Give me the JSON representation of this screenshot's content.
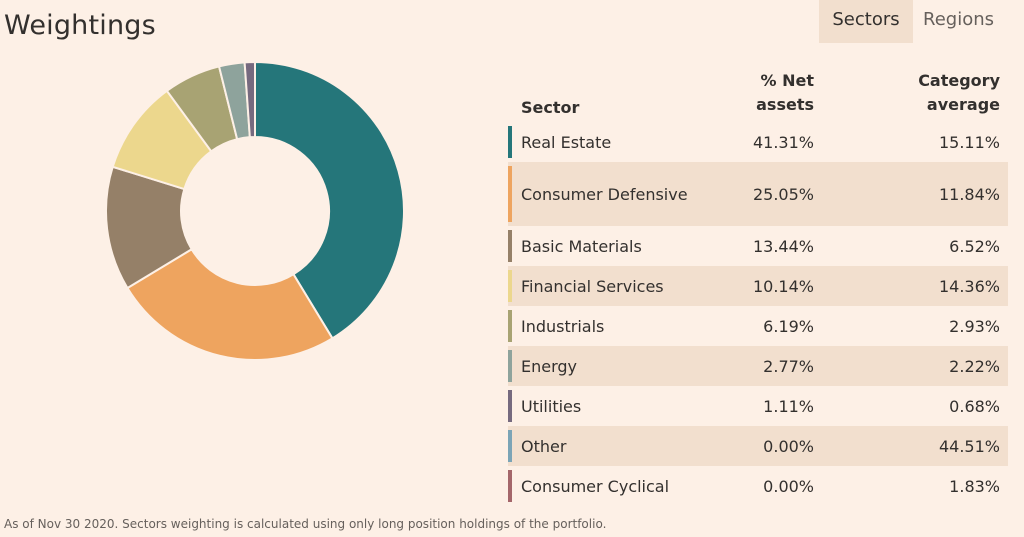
{
  "title": "Weightings",
  "tabs": {
    "sectors": "Sectors",
    "regions": "Regions"
  },
  "table_headers": {
    "sector": "Sector",
    "net_assets_line1": "% Net",
    "net_assets_line2": "assets",
    "category_line1": "Category",
    "category_line2": "average"
  },
  "footnote": "As of Nov 30 2020. Sectors weighting is calculated using only long position holdings of the portfolio.",
  "chart_data": {
    "type": "pie",
    "variant": "donut",
    "categories": [
      "Real Estate",
      "Consumer Defensive",
      "Basic Materials",
      "Financial Services",
      "Industrials",
      "Energy",
      "Utilities",
      "Other",
      "Consumer Cyclical"
    ],
    "series": [
      {
        "name": "% Net assets",
        "values": [
          41.31,
          25.05,
          13.44,
          10.14,
          6.19,
          2.77,
          1.11,
          0.0,
          0.0
        ]
      },
      {
        "name": "Category average",
        "values": [
          15.11,
          11.84,
          6.52,
          14.36,
          2.93,
          2.22,
          0.68,
          44.51,
          1.83
        ]
      }
    ],
    "labels_net": [
      "41.31%",
      "25.05%",
      "13.44%",
      "10.14%",
      "6.19%",
      "2.77%",
      "1.11%",
      "0.00%",
      "0.00%"
    ],
    "labels_cat": [
      "15.11%",
      "11.84%",
      "6.52%",
      "14.36%",
      "2.93%",
      "2.22%",
      "0.68%",
      "44.51%",
      "1.83%"
    ],
    "colors": [
      "#25767a",
      "#eea45f",
      "#958068",
      "#ecd78d",
      "#a8a373",
      "#8ea39c",
      "#766a7f",
      "#7ba4b6",
      "#a4666a"
    ]
  }
}
